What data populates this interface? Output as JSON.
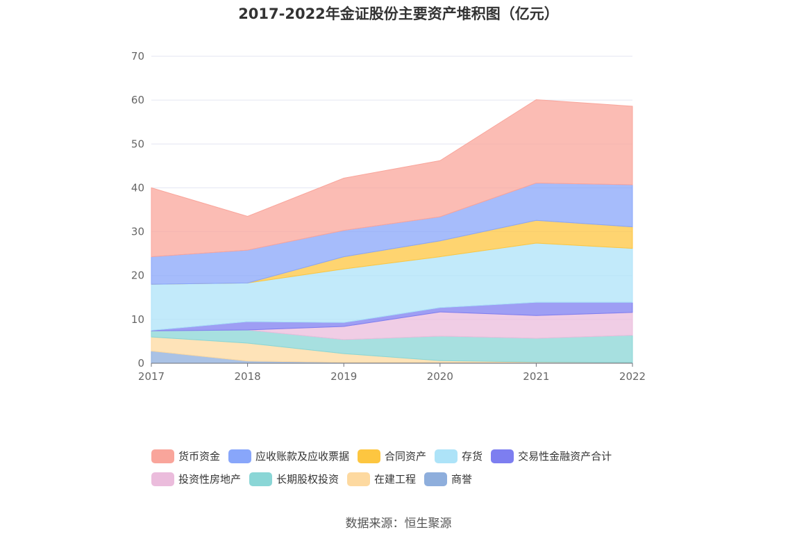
{
  "chart_data": {
    "type": "area",
    "stacked": true,
    "title": "2017-2022年金证股份主要资产堆积图（亿元）",
    "x": [
      "2017",
      "2018",
      "2019",
      "2020",
      "2021",
      "2022"
    ],
    "ylim": [
      0,
      70
    ],
    "yticks": [
      "0",
      "10",
      "20",
      "30",
      "40",
      "50",
      "60",
      "70"
    ],
    "grid": true,
    "legend_position": "bottom",
    "series": [
      {
        "name": "商誉",
        "color": "#8eaedc",
        "values": [
          2.8,
          0.5,
          0.2,
          0.2,
          0.2,
          0.2
        ]
      },
      {
        "name": "在建工程",
        "color": "#fdd9a0",
        "values": [
          3.2,
          4.1,
          2.0,
          0.4,
          0.1,
          0.0
        ]
      },
      {
        "name": "长期股权投资",
        "color": "#8ad6d6",
        "values": [
          1.4,
          3.0,
          3.2,
          5.6,
          5.4,
          6.2
        ]
      },
      {
        "name": "投资性房地产",
        "color": "#ebbcdc",
        "values": [
          0.0,
          0.0,
          3.0,
          5.5,
          5.2,
          5.2
        ]
      },
      {
        "name": "交易性金融资产合计",
        "color": "#7d7ef0",
        "values": [
          0.1,
          1.9,
          0.9,
          1.0,
          3.0,
          2.3
        ]
      },
      {
        "name": "存货",
        "color": "#ade3f8",
        "values": [
          10.5,
          8.8,
          12.2,
          11.6,
          13.5,
          12.3
        ]
      },
      {
        "name": "合同资产",
        "color": "#fdc640",
        "values": [
          0.0,
          0.0,
          2.8,
          3.6,
          5.2,
          4.9
        ]
      },
      {
        "name": "应收账款及应收票据",
        "color": "#88a6fa",
        "values": [
          6.3,
          7.5,
          6.0,
          5.5,
          8.5,
          9.6
        ]
      },
      {
        "name": "货币资金",
        "color": "#f9a59b",
        "values": [
          15.7,
          7.7,
          11.9,
          12.8,
          19.0,
          17.9
        ]
      }
    ],
    "legend_order": [
      "货币资金",
      "应收账款及应收票据",
      "合同资产",
      "存货",
      "交易性金融资产合计",
      "投资性房地产",
      "长期股权投资",
      "在建工程",
      "商誉"
    ]
  },
  "source": "数据来源：恒生聚源"
}
